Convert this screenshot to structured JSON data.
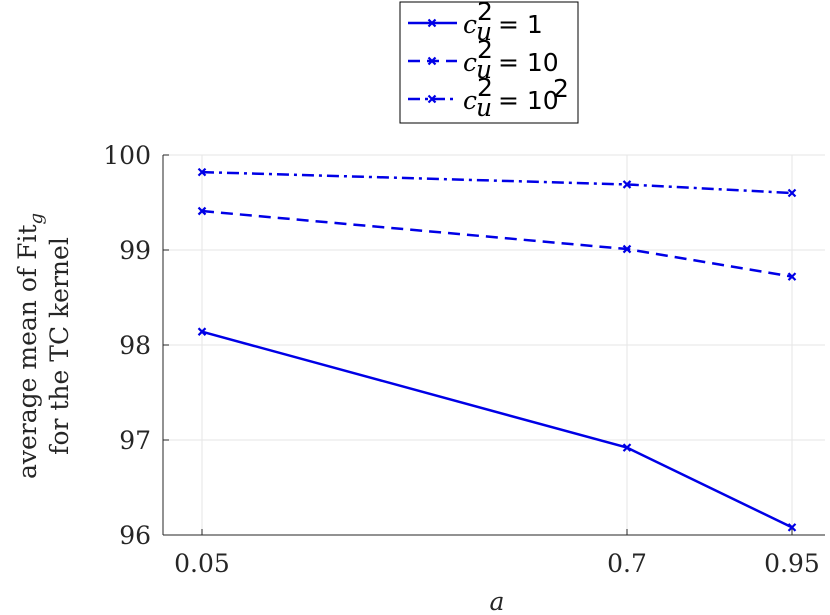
{
  "chart_data": {
    "type": "line",
    "title": "",
    "xlabel": "a",
    "ylabel_line1": "average mean of Fit",
    "ylabel_sub": "g",
    "ylabel_line2": "for the TC kernel",
    "x": [
      0.05,
      0.7,
      0.95
    ],
    "xlim": [
      0.05,
      0.95
    ],
    "ylim": [
      96,
      100
    ],
    "xticks": [
      "0.05",
      "0.7",
      "0.95"
    ],
    "yticks": [
      "96",
      "97",
      "98",
      "99",
      "100"
    ],
    "grid": true,
    "legend_position": "top-center",
    "line_color": "#0000e6",
    "series": [
      {
        "name": "c_u^2 = 1",
        "legend_value": "1",
        "legend_exp": "",
        "dash": "solid",
        "values": [
          98.14,
          96.92,
          96.08
        ]
      },
      {
        "name": "c_u^2 = 10",
        "legend_value": "10",
        "legend_exp": "",
        "dash": "dashed",
        "values": [
          99.41,
          99.01,
          98.72
        ]
      },
      {
        "name": "c_u^2 = 10^2",
        "legend_value": "10",
        "legend_exp": "2",
        "dash": "dashdot",
        "values": [
          99.82,
          99.69,
          99.6
        ]
      }
    ]
  }
}
